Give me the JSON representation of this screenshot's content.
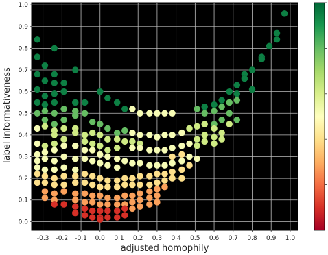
{
  "chart_data": {
    "type": "scatter",
    "title": "",
    "xlabel": "adjusted homophily",
    "ylabel": "label informativeness",
    "xlim": [
      -0.36,
      1.04
    ],
    "ylim": [
      -0.04,
      1.01
    ],
    "x_ticks": [
      "-0.3",
      "-0.2",
      "-0.1",
      "0.0",
      "0.1",
      "0.2",
      "0.3",
      "0.4",
      "0.5",
      "0.6",
      "0.7",
      "0.8",
      "0.9",
      "1.0"
    ],
    "x_tick_values": [
      -0.3,
      -0.2,
      -0.1,
      0.0,
      0.1,
      0.2,
      0.3,
      0.4,
      0.5,
      0.6,
      0.7,
      0.8,
      0.9,
      1.0
    ],
    "y_ticks": [
      "0.0",
      "0.1",
      "0.2",
      "0.3",
      "0.4",
      "0.5",
      "0.6",
      "0.7",
      "0.8",
      "0.9",
      "1.0"
    ],
    "y_tick_values": [
      0.0,
      0.1,
      0.2,
      0.3,
      0.4,
      0.5,
      0.6,
      0.7,
      0.8,
      0.9,
      1.0
    ],
    "grid": true,
    "background": "#000000",
    "grid_color": "#bdbdbd",
    "colormap": "RdYlGn",
    "colorbar": {
      "position": "right",
      "tick_labels": []
    },
    "colormap_stops": [
      "#a50026",
      "#d73027",
      "#f46d43",
      "#fdae61",
      "#fee08b",
      "#ffffbf",
      "#d9ef8b",
      "#a6d96a",
      "#66bd63",
      "#1a9850",
      "#006837"
    ],
    "curves": [
      {
        "level": 0.95,
        "points": [
          [
            -0.33,
            0.84
          ],
          [
            -0.24,
            0.8
          ],
          [
            -0.33,
            0.76
          ],
          [
            -0.29,
            0.72
          ],
          [
            -0.33,
            0.68
          ],
          [
            -0.24,
            0.68
          ],
          [
            -0.29,
            0.65
          ],
          [
            -0.13,
            0.7
          ],
          [
            -0.33,
            0.61
          ],
          [
            -0.29,
            0.58
          ],
          [
            -0.24,
            0.64
          ],
          [
            -0.19,
            0.64
          ],
          [
            -0.33,
            0.55
          ],
          [
            -0.24,
            0.59
          ],
          [
            -0.19,
            0.6
          ],
          [
            -0.13,
            0.55
          ],
          [
            -0.08,
            0.55
          ],
          [
            -0.29,
            0.54
          ],
          [
            -0.24,
            0.55
          ],
          [
            0.0,
            0.6
          ],
          [
            0.04,
            0.57
          ],
          [
            0.09,
            0.55
          ],
          [
            0.13,
            0.52
          ],
          [
            0.68,
            0.6
          ],
          [
            0.64,
            0.56
          ],
          [
            0.6,
            0.54
          ],
          [
            0.55,
            0.53
          ],
          [
            0.76,
            0.68
          ],
          [
            0.8,
            0.7
          ],
          [
            0.85,
            0.76
          ],
          [
            0.89,
            0.81
          ],
          [
            0.93,
            0.84
          ],
          [
            0.97,
            0.96
          ],
          [
            0.93,
            0.87
          ],
          [
            0.85,
            0.75
          ],
          [
            0.76,
            0.66
          ],
          [
            0.72,
            0.63
          ],
          [
            0.8,
            0.61
          ],
          [
            0.72,
            0.59
          ]
        ]
      },
      {
        "level": 0.8,
        "points": [
          [
            -0.33,
            0.5
          ],
          [
            -0.29,
            0.47
          ],
          [
            -0.24,
            0.45
          ],
          [
            -0.19,
            0.47
          ],
          [
            -0.13,
            0.49
          ],
          [
            -0.08,
            0.5
          ],
          [
            -0.04,
            0.46
          ],
          [
            0.0,
            0.45
          ],
          [
            0.04,
            0.43
          ],
          [
            0.09,
            0.41
          ],
          [
            0.13,
            0.42
          ],
          [
            0.68,
            0.55
          ],
          [
            0.64,
            0.53
          ],
          [
            0.6,
            0.51
          ],
          [
            0.55,
            0.5
          ],
          [
            0.51,
            0.52
          ],
          [
            -0.29,
            0.51
          ],
          [
            -0.24,
            0.5
          ],
          [
            -0.19,
            0.52
          ],
          [
            -0.13,
            0.51
          ],
          [
            0.72,
            0.56
          ],
          [
            0.68,
            0.5
          ],
          [
            0.64,
            0.47
          ],
          [
            0.6,
            0.45
          ],
          [
            0.72,
            0.47
          ]
        ]
      },
      {
        "level": 0.62,
        "points": [
          [
            -0.29,
            0.44
          ],
          [
            -0.24,
            0.42
          ],
          [
            -0.19,
            0.43
          ],
          [
            -0.13,
            0.43
          ],
          [
            -0.08,
            0.4
          ],
          [
            -0.04,
            0.41
          ],
          [
            0.0,
            0.4
          ],
          [
            0.04,
            0.38
          ],
          [
            0.09,
            0.38
          ],
          [
            0.13,
            0.37
          ],
          [
            0.17,
            0.37
          ],
          [
            0.21,
            0.36
          ],
          [
            0.51,
            0.44
          ],
          [
            0.47,
            0.43
          ],
          [
            0.43,
            0.41
          ],
          [
            0.55,
            0.45
          ],
          [
            0.6,
            0.43
          ],
          [
            0.64,
            0.41
          ],
          [
            0.68,
            0.45
          ],
          [
            -0.24,
            0.4
          ],
          [
            -0.13,
            0.41
          ],
          [
            -0.19,
            0.38
          ],
          [
            -0.24,
            0.36
          ],
          [
            -0.29,
            0.35
          ],
          [
            -0.08,
            0.37
          ],
          [
            -0.04,
            0.36
          ],
          [
            0.0,
            0.35
          ],
          [
            0.04,
            0.33
          ],
          [
            0.09,
            0.34
          ],
          [
            0.55,
            0.4
          ],
          [
            0.6,
            0.39
          ],
          [
            0.64,
            0.38
          ],
          [
            0.51,
            0.38
          ],
          [
            0.55,
            0.37
          ],
          [
            0.6,
            0.36
          ],
          [
            0.51,
            0.35
          ]
        ]
      },
      {
        "level": 0.52,
        "points": [
          [
            0.17,
            0.52
          ],
          [
            0.21,
            0.5
          ],
          [
            0.26,
            0.5
          ],
          [
            0.3,
            0.5
          ],
          [
            0.34,
            0.5
          ],
          [
            0.38,
            0.5
          ],
          [
            0.17,
            0.41
          ],
          [
            0.21,
            0.4
          ],
          [
            0.26,
            0.4
          ],
          [
            0.3,
            0.39
          ],
          [
            0.34,
            0.4
          ],
          [
            0.38,
            0.4
          ],
          [
            0.43,
            0.41
          ],
          [
            -0.33,
            0.43
          ],
          [
            -0.33,
            0.36
          ],
          [
            0.17,
            0.34
          ],
          [
            0.21,
            0.34
          ],
          [
            0.26,
            0.33
          ],
          [
            0.3,
            0.33
          ],
          [
            0.34,
            0.33
          ],
          [
            0.38,
            0.34
          ],
          [
            0.43,
            0.35
          ],
          [
            0.47,
            0.36
          ],
          [
            -0.29,
            0.32
          ],
          [
            -0.24,
            0.33
          ],
          [
            -0.19,
            0.35
          ],
          [
            -0.13,
            0.35
          ],
          [
            -0.08,
            0.33
          ],
          [
            -0.04,
            0.33
          ],
          [
            0.0,
            0.31
          ],
          [
            0.04,
            0.3
          ],
          [
            0.09,
            0.29
          ],
          [
            0.13,
            0.28
          ],
          [
            0.17,
            0.27
          ],
          [
            0.21,
            0.27
          ],
          [
            0.26,
            0.26
          ],
          [
            0.3,
            0.26
          ],
          [
            0.34,
            0.26
          ],
          [
            0.38,
            0.27
          ],
          [
            0.43,
            0.28
          ],
          [
            0.47,
            0.3
          ],
          [
            0.51,
            0.29
          ],
          [
            -0.33,
            0.31
          ],
          [
            -0.33,
            0.28
          ],
          [
            -0.29,
            0.29
          ],
          [
            -0.24,
            0.28
          ],
          [
            -0.19,
            0.3
          ],
          [
            -0.13,
            0.29
          ],
          [
            -0.08,
            0.29
          ],
          [
            -0.04,
            0.28
          ],
          [
            0.0,
            0.27
          ],
          [
            0.04,
            0.26
          ],
          [
            0.09,
            0.25
          ],
          [
            -0.13,
            0.24
          ],
          [
            -0.19,
            0.25
          ],
          [
            -0.24,
            0.24
          ],
          [
            -0.29,
            0.24
          ],
          [
            -0.33,
            0.25
          ]
        ]
      },
      {
        "level": 0.4,
        "points": [
          [
            0.43,
            0.31
          ],
          [
            0.38,
            0.3
          ],
          [
            -0.33,
            0.22
          ],
          [
            -0.29,
            0.21
          ],
          [
            -0.24,
            0.2
          ],
          [
            -0.19,
            0.21
          ],
          [
            -0.13,
            0.21
          ],
          [
            -0.08,
            0.22
          ],
          [
            -0.04,
            0.21
          ],
          [
            0.0,
            0.2
          ],
          [
            0.04,
            0.19
          ],
          [
            0.09,
            0.19
          ],
          [
            0.13,
            0.2
          ],
          [
            0.17,
            0.2
          ],
          [
            0.21,
            0.21
          ],
          [
            0.26,
            0.21
          ],
          [
            0.3,
            0.22
          ],
          [
            0.34,
            0.22
          ],
          [
            0.38,
            0.23
          ],
          [
            0.43,
            0.24
          ],
          [
            0.47,
            0.26
          ],
          [
            0.38,
            0.2
          ],
          [
            0.43,
            0.2
          ],
          [
            0.34,
            0.19
          ],
          [
            0.3,
            0.18
          ],
          [
            0.26,
            0.17
          ],
          [
            0.21,
            0.17
          ],
          [
            0.17,
            0.17
          ],
          [
            0.13,
            0.17
          ],
          [
            0.09,
            0.16
          ],
          [
            0.04,
            0.16
          ],
          [
            0.0,
            0.16
          ],
          [
            -0.04,
            0.17
          ],
          [
            -0.08,
            0.18
          ],
          [
            -0.13,
            0.18
          ],
          [
            -0.19,
            0.17
          ],
          [
            -0.24,
            0.17
          ],
          [
            -0.29,
            0.18
          ],
          [
            -0.33,
            0.18
          ]
        ]
      },
      {
        "level": 0.28,
        "points": [
          [
            -0.29,
            0.14
          ],
          [
            -0.24,
            0.13
          ],
          [
            -0.19,
            0.14
          ],
          [
            -0.13,
            0.13
          ],
          [
            -0.08,
            0.13
          ],
          [
            -0.04,
            0.12
          ],
          [
            0.0,
            0.12
          ],
          [
            0.04,
            0.11
          ],
          [
            0.09,
            0.11
          ],
          [
            0.13,
            0.12
          ],
          [
            0.17,
            0.12
          ],
          [
            0.21,
            0.13
          ],
          [
            0.26,
            0.14
          ],
          [
            0.3,
            0.15
          ],
          [
            0.34,
            0.16
          ],
          [
            -0.29,
            0.11
          ],
          [
            -0.24,
            0.1
          ],
          [
            -0.13,
            0.1
          ],
          [
            -0.08,
            0.09
          ],
          [
            -0.04,
            0.09
          ],
          [
            0.0,
            0.08
          ],
          [
            0.04,
            0.08
          ],
          [
            0.09,
            0.08
          ],
          [
            0.13,
            0.08
          ],
          [
            0.17,
            0.09
          ],
          [
            0.21,
            0.1
          ],
          [
            0.26,
            0.11
          ],
          [
            0.3,
            0.12
          ],
          [
            0.3,
            0.09
          ],
          [
            0.26,
            0.08
          ],
          [
            0.21,
            0.07
          ],
          [
            0.17,
            0.06
          ]
        ]
      },
      {
        "level": 0.1,
        "points": [
          [
            -0.24,
            0.08
          ],
          [
            -0.19,
            0.08
          ],
          [
            -0.13,
            0.07
          ],
          [
            -0.08,
            0.06
          ],
          [
            -0.04,
            0.05
          ],
          [
            0.0,
            0.05
          ],
          [
            0.04,
            0.05
          ],
          [
            0.09,
            0.05
          ],
          [
            0.13,
            0.06
          ],
          [
            -0.13,
            0.04
          ],
          [
            -0.08,
            0.03
          ],
          [
            -0.04,
            0.02
          ],
          [
            0.0,
            0.02
          ],
          [
            0.04,
            0.02
          ],
          [
            0.09,
            0.02
          ],
          [
            0.13,
            0.03
          ],
          [
            0.0,
            0.01
          ]
        ]
      }
    ]
  }
}
